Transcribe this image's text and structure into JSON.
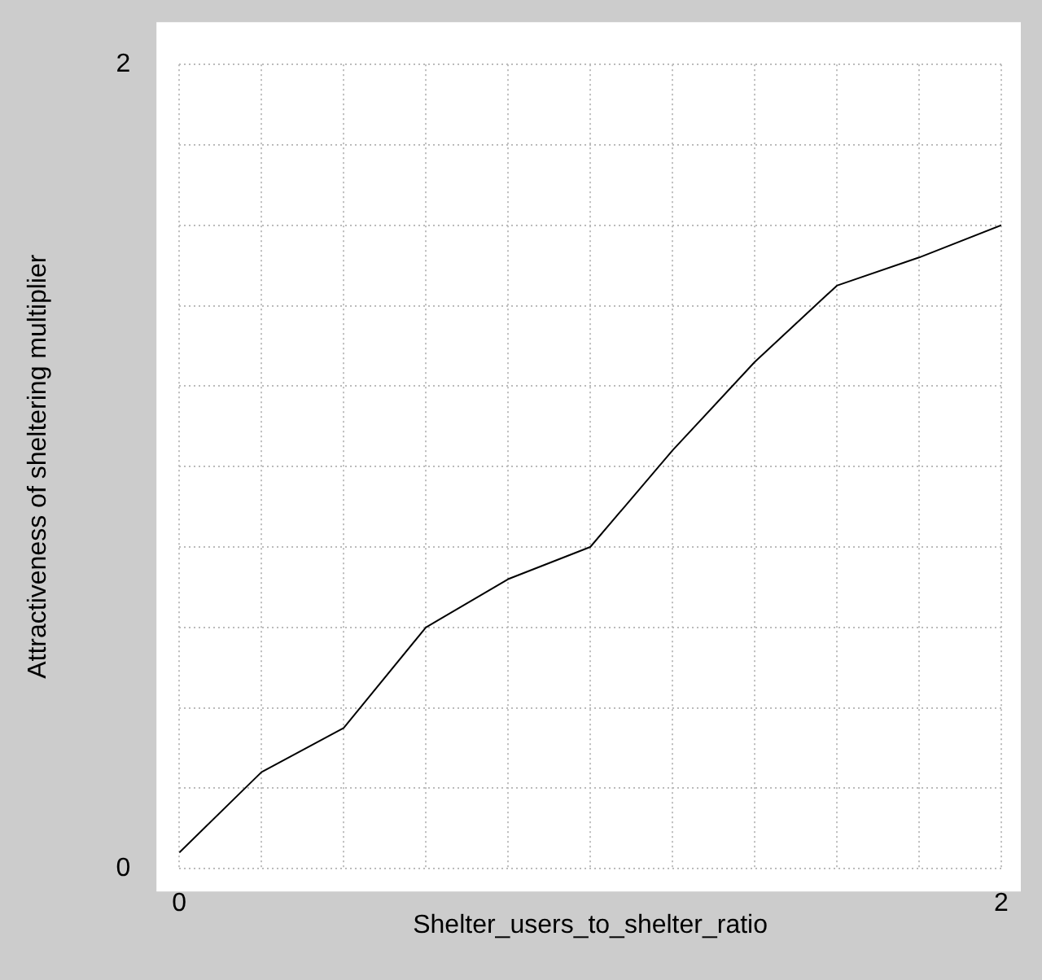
{
  "chart_data": {
    "type": "line",
    "xlabel": "Shelter_users_to_shelter_ratio",
    "ylabel": "Attractiveness of sheltering multiplier",
    "x": [
      0,
      0.2,
      0.4,
      0.6,
      0.8,
      1.0,
      1.2,
      1.4,
      1.6,
      1.8,
      2.0
    ],
    "series": [
      {
        "color": "#000000",
        "values": [
          0.04,
          0.24,
          0.35,
          0.6,
          0.72,
          0.8,
          1.04,
          1.26,
          1.45,
          1.52,
          1.6
        ]
      }
    ],
    "xlim": [
      0,
      2
    ],
    "ylim": [
      0,
      2
    ],
    "xticks": [
      0,
      {
        "value": 0.2,
        "label": null
      },
      {
        "value": 0.4,
        "label": null
      },
      {
        "value": 0.6,
        "label": null
      },
      {
        "value": 0.8,
        "label": null
      },
      {
        "value": 1,
        "label": null
      },
      {
        "value": 1.2,
        "label": null
      },
      {
        "value": 1.4,
        "label": null
      },
      {
        "value": 1.6,
        "label": null
      },
      {
        "value": 1.8,
        "label": null
      },
      2
    ],
    "yticks": [
      0,
      {
        "value": 0.2,
        "label": null
      },
      {
        "value": 0.4,
        "label": null
      },
      {
        "value": 0.6,
        "label": null
      },
      {
        "value": 0.8,
        "label": null
      },
      {
        "value": 1,
        "label": null
      },
      {
        "value": 1.2,
        "label": null
      },
      {
        "value": 1.4,
        "label": null
      },
      {
        "value": 1.6,
        "label": null
      },
      {
        "value": 1.8,
        "label": null
      },
      2
    ],
    "grid": true,
    "legend": false,
    "marker": "none",
    "line_style": "solid"
  }
}
